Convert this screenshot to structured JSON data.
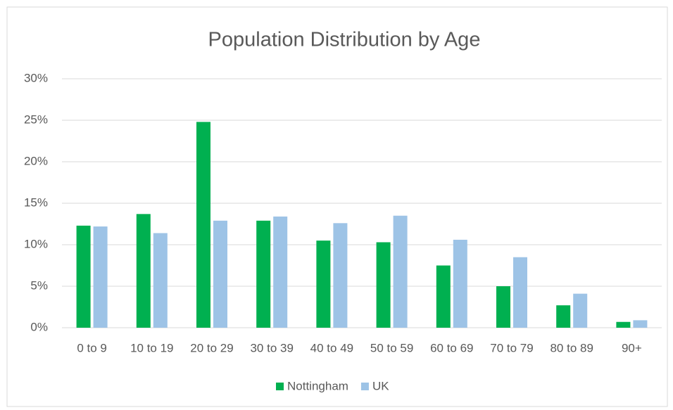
{
  "chart_data": {
    "type": "bar",
    "title": "Population Distribution by Age",
    "categories": [
      "0 to 9",
      "10 to 19",
      "20 to 29",
      "30 to 39",
      "40 to 49",
      "50 to 59",
      "60 to 69",
      "70 to 79",
      "80 to 89",
      "90+"
    ],
    "series": [
      {
        "name": "Nottingham",
        "color": "#00b050",
        "values": [
          12.3,
          13.7,
          24.8,
          12.9,
          10.5,
          10.3,
          7.5,
          5.0,
          2.7,
          0.7
        ]
      },
      {
        "name": "UK",
        "color": "#9dc3e6",
        "values": [
          12.2,
          11.4,
          12.9,
          13.4,
          12.6,
          13.5,
          10.6,
          8.5,
          4.1,
          0.9
        ]
      }
    ],
    "ylim": [
      0,
      30
    ],
    "yticks": [
      {
        "value": 0,
        "label": "0%"
      },
      {
        "value": 5,
        "label": "5%"
      },
      {
        "value": 10,
        "label": "10%"
      },
      {
        "value": 15,
        "label": "15%"
      },
      {
        "value": 20,
        "label": "20%"
      },
      {
        "value": 25,
        "label": "25%"
      },
      {
        "value": 30,
        "label": "30%"
      }
    ],
    "grid": true,
    "legend": "bottom"
  }
}
